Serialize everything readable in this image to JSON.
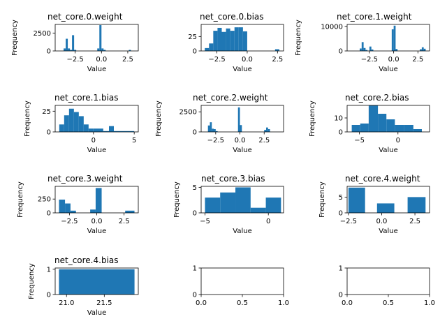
{
  "colors": {
    "bar": "#1f77b4",
    "axis": "#000000",
    "background": "#ffffff"
  },
  "chart_data": [
    {
      "type": "bar",
      "title": "net_core.0.weight",
      "xlabel": "Value",
      "ylabel": "Frequency",
      "xlim": [
        -4.4,
        3.5
      ],
      "ylim": [
        0,
        3700
      ],
      "xticks": [
        -2.5,
        0.0,
        2.5
      ],
      "xticklabels": [
        "−2.5",
        "0.0",
        "2.5"
      ],
      "yticks": [
        0,
        2500
      ],
      "yticklabels": [
        "0",
        "2500"
      ],
      "bins": [
        {
          "x0": -3.6,
          "x1": -3.4,
          "y": 350
        },
        {
          "x0": -3.4,
          "x1": -3.2,
          "y": 1700
        },
        {
          "x0": -3.2,
          "x1": -3.0,
          "y": 350
        },
        {
          "x0": -3.0,
          "x1": -2.8,
          "y": 150
        },
        {
          "x0": -2.8,
          "x1": -2.6,
          "y": 2200
        },
        {
          "x0": -2.6,
          "x1": -2.4,
          "y": 150
        },
        {
          "x0": -0.4,
          "x1": -0.2,
          "y": 350
        },
        {
          "x0": -0.2,
          "x1": 0.0,
          "y": 3600
        },
        {
          "x0": 0.0,
          "x1": 0.2,
          "y": 350
        },
        {
          "x0": 0.2,
          "x1": 0.4,
          "y": 150
        },
        {
          "x0": 2.6,
          "x1": 2.8,
          "y": 150
        }
      ]
    },
    {
      "type": "bar",
      "title": "net_core.0.bias",
      "xlabel": "Value",
      "ylabel": "",
      "xlim": [
        -3.8,
        3.0
      ],
      "ylim": [
        0,
        46
      ],
      "xticks": [
        -2.5,
        0.0,
        2.5
      ],
      "xticklabels": [
        "−2.5",
        "0.0",
        "2.5"
      ],
      "yticks": [
        0,
        25
      ],
      "yticklabels": [
        "0",
        "25"
      ],
      "bins": [
        {
          "x0": -3.5,
          "x1": -3.15,
          "y": 5
        },
        {
          "x0": -3.15,
          "x1": -2.8,
          "y": 13
        },
        {
          "x0": -2.8,
          "x1": -2.45,
          "y": 35
        },
        {
          "x0": -2.45,
          "x1": -2.1,
          "y": 40
        },
        {
          "x0": -2.1,
          "x1": -1.75,
          "y": 33
        },
        {
          "x0": -1.75,
          "x1": -1.4,
          "y": 39
        },
        {
          "x0": -1.4,
          "x1": -1.05,
          "y": 35
        },
        {
          "x0": -1.05,
          "x1": -0.7,
          "y": 41
        },
        {
          "x0": -0.7,
          "x1": -0.35,
          "y": 41
        },
        {
          "x0": -0.35,
          "x1": 0.0,
          "y": 34
        },
        {
          "x0": 2.3,
          "x1": 2.65,
          "y": 3
        }
      ]
    },
    {
      "type": "bar",
      "title": "net_core.1.weight",
      "xlabel": "Value",
      "ylabel": "Frequency",
      "xlim": [
        -4.8,
        3.7
      ],
      "ylim": [
        0,
        10800
      ],
      "xticks": [
        -2.5,
        0.0,
        2.5
      ],
      "xticklabels": [
        "−2.5",
        "0.0",
        "2.5"
      ],
      "yticks": [
        0,
        10000
      ],
      "yticklabels": [
        "0",
        "10000"
      ],
      "bins": [
        {
          "x0": -3.5,
          "x1": -3.3,
          "y": 1000
        },
        {
          "x0": -3.3,
          "x1": -3.1,
          "y": 3600
        },
        {
          "x0": -3.1,
          "x1": -2.9,
          "y": 1200
        },
        {
          "x0": -2.9,
          "x1": -2.7,
          "y": 400
        },
        {
          "x0": -2.5,
          "x1": -2.3,
          "y": 1800
        },
        {
          "x0": -2.3,
          "x1": -2.1,
          "y": 600
        },
        {
          "x0": -0.2,
          "x1": 0.0,
          "y": 8800
        },
        {
          "x0": 0.0,
          "x1": 0.2,
          "y": 10300
        },
        {
          "x0": 0.2,
          "x1": 0.4,
          "y": 800
        },
        {
          "x0": 2.7,
          "x1": 2.9,
          "y": 700
        },
        {
          "x0": 2.9,
          "x1": 3.1,
          "y": 1500
        },
        {
          "x0": 3.1,
          "x1": 3.3,
          "y": 900
        }
      ]
    },
    {
      "type": "bar",
      "title": "net_core.1.bias",
      "xlabel": "Value",
      "ylabel": "Frequency",
      "xlim": [
        -4.7,
        5.5
      ],
      "ylim": [
        0,
        32
      ],
      "xticks": [
        -5,
        0,
        5
      ],
      "xticklabels": [
        "",
        "0",
        "5"
      ],
      "yticks": [
        0,
        25
      ],
      "yticklabels": [
        "0",
        "25"
      ],
      "bins": [
        {
          "x0": -4.2,
          "x1": -3.6,
          "y": 9
        },
        {
          "x0": -3.6,
          "x1": -3.0,
          "y": 20
        },
        {
          "x0": -3.0,
          "x1": -2.4,
          "y": 28
        },
        {
          "x0": -2.4,
          "x1": -1.8,
          "y": 24
        },
        {
          "x0": -1.8,
          "x1": -1.2,
          "y": 19
        },
        {
          "x0": -1.2,
          "x1": -0.6,
          "y": 9
        },
        {
          "x0": -0.6,
          "x1": 0.0,
          "y": 4
        },
        {
          "x0": 0.0,
          "x1": 1.2,
          "y": 4
        },
        {
          "x0": 1.2,
          "x1": 1.9,
          "y": 1
        },
        {
          "x0": 1.9,
          "x1": 2.5,
          "y": 7
        },
        {
          "x0": 2.5,
          "x1": 4.3,
          "y": 1
        },
        {
          "x0": 4.3,
          "x1": 5.0,
          "y": 1
        }
      ]
    },
    {
      "type": "bar",
      "title": "net_core.2.weight",
      "xlabel": "Value",
      "ylabel": "Frequency",
      "xlim": [
        -4.0,
        4.5
      ],
      "ylim": [
        0,
        3300
      ],
      "xticks": [
        -2.5,
        0.0,
        2.5
      ],
      "xticklabels": [
        "−2.5",
        "0.0",
        "2.5"
      ],
      "yticks": [
        0,
        2500
      ],
      "yticklabels": [
        "0",
        "2500"
      ],
      "bins": [
        {
          "x0": -3.3,
          "x1": -3.1,
          "y": 800
        },
        {
          "x0": -3.1,
          "x1": -2.9,
          "y": 1200
        },
        {
          "x0": -2.9,
          "x1": -2.7,
          "y": 400
        },
        {
          "x0": -2.7,
          "x1": -2.5,
          "y": 350
        },
        {
          "x0": -2.5,
          "x1": -2.3,
          "y": 100
        },
        {
          "x0": -0.2,
          "x1": 0.0,
          "y": 3050
        },
        {
          "x0": 0.0,
          "x1": 0.2,
          "y": 850
        },
        {
          "x0": 2.5,
          "x1": 2.7,
          "y": 250
        },
        {
          "x0": 2.7,
          "x1": 2.9,
          "y": 550
        },
        {
          "x0": 2.9,
          "x1": 3.1,
          "y": 350
        }
      ]
    },
    {
      "type": "bar",
      "title": "net_core.2.bias",
      "xlabel": "Value",
      "ylabel": "Frequency",
      "xlim": [
        -6.6,
        4.1
      ],
      "ylim": [
        0,
        19
      ],
      "xticks": [
        -5,
        0
      ],
      "xticklabels": [
        "−5",
        "0"
      ],
      "yticks": [
        0,
        10
      ],
      "yticklabels": [
        "0",
        "10"
      ],
      "bins": [
        {
          "x0": -6.0,
          "x1": -4.9,
          "y": 5
        },
        {
          "x0": -4.9,
          "x1": -3.8,
          "y": 6
        },
        {
          "x0": -3.8,
          "x1": -2.6,
          "y": 19
        },
        {
          "x0": -2.6,
          "x1": -1.5,
          "y": 13
        },
        {
          "x0": -1.5,
          "x1": -0.4,
          "y": 9
        },
        {
          "x0": -0.4,
          "x1": 0.8,
          "y": 5
        },
        {
          "x0": 0.8,
          "x1": 2.0,
          "y": 5
        },
        {
          "x0": 2.0,
          "x1": 3.1,
          "y": 2
        }
      ]
    },
    {
      "type": "bar",
      "title": "net_core.3.weight",
      "xlabel": "Value",
      "ylabel": "Frequency",
      "xlim": [
        -3.8,
        3.8
      ],
      "ylim": [
        0,
        480
      ],
      "xticks": [
        -2.5,
        0.0,
        2.5
      ],
      "xticklabels": [
        "−2.5",
        "0.0",
        "2.5"
      ],
      "yticks": [
        0,
        250
      ],
      "yticklabels": [
        "0",
        "250"
      ],
      "bins": [
        {
          "x0": -3.45,
          "x1": -2.9,
          "y": 240
        },
        {
          "x0": -2.9,
          "x1": -2.4,
          "y": 170
        },
        {
          "x0": -2.4,
          "x1": -1.9,
          "y": 40
        },
        {
          "x0": -0.6,
          "x1": -0.1,
          "y": 60
        },
        {
          "x0": -0.1,
          "x1": 0.45,
          "y": 450
        },
        {
          "x0": 2.6,
          "x1": 3.45,
          "y": 40
        }
      ]
    },
    {
      "type": "bar",
      "title": "net_core.3.bias",
      "xlabel": "Value",
      "ylabel": "Frequency",
      "xlim": [
        -5.3,
        1.2
      ],
      "ylim": [
        0,
        5.2
      ],
      "xticks": [
        -5,
        0
      ],
      "xticklabels": [
        "−5",
        "0"
      ],
      "yticks": [
        0,
        5
      ],
      "yticklabels": [
        "0",
        "5"
      ],
      "bins": [
        {
          "x0": -5.0,
          "x1": -3.8,
          "y": 3
        },
        {
          "x0": -3.8,
          "x1": -2.6,
          "y": 4
        },
        {
          "x0": -2.6,
          "x1": -1.4,
          "y": 5
        },
        {
          "x0": -1.4,
          "x1": -0.2,
          "y": 1
        },
        {
          "x0": -0.2,
          "x1": 1.0,
          "y": 3
        }
      ]
    },
    {
      "type": "bar",
      "title": "net_core.4.weight",
      "xlabel": "Value",
      "ylabel": "Frequency",
      "xlim": [
        -2.6,
        3.6
      ],
      "ylim": [
        0,
        8.4
      ],
      "xticks": [
        -2.5,
        0.0,
        2.5
      ],
      "xticklabels": [
        "−2.5",
        "0.0",
        "2.5"
      ],
      "yticks": [
        0,
        5
      ],
      "yticklabels": [
        "0",
        "5"
      ],
      "bins": [
        {
          "x0": -2.5,
          "x1": -1.25,
          "y": 8
        },
        {
          "x0": -0.35,
          "x1": 0.95,
          "y": 3
        },
        {
          "x0": 1.95,
          "x1": 3.3,
          "y": 5
        }
      ]
    },
    {
      "type": "bar",
      "title": "net_core.4.bias",
      "xlabel": "Value",
      "ylabel": "Frequency",
      "xlim": [
        20.85,
        21.95
      ],
      "ylim": [
        0,
        1.05
      ],
      "xticks": [
        21.0,
        21.5
      ],
      "xticklabels": [
        "21.0",
        "21.5"
      ],
      "yticks": [
        0,
        1
      ],
      "yticklabels": [
        "0",
        "1"
      ],
      "bins": [
        {
          "x0": 20.9,
          "x1": 21.9,
          "y": 1
        }
      ]
    },
    {
      "type": "bar",
      "title": "",
      "xlabel": "",
      "ylabel": "",
      "xlim": [
        0,
        1
      ],
      "ylim": [
        0,
        1
      ],
      "xticks": [
        0,
        0.5,
        1
      ],
      "xticklabels": [
        "0.0",
        "0.5",
        "1.0"
      ],
      "yticks": [
        0,
        1
      ],
      "yticklabels": [
        "0",
        "1"
      ],
      "bins": []
    },
    {
      "type": "bar",
      "title": "",
      "xlabel": "",
      "ylabel": "",
      "xlim": [
        0,
        1
      ],
      "ylim": [
        0,
        1
      ],
      "xticks": [
        0,
        0.5,
        1
      ],
      "xticklabels": [
        "0.0",
        "0.5",
        "1.0"
      ],
      "yticks": [
        0,
        1
      ],
      "yticklabels": [
        "0",
        "1"
      ],
      "bins": []
    }
  ]
}
